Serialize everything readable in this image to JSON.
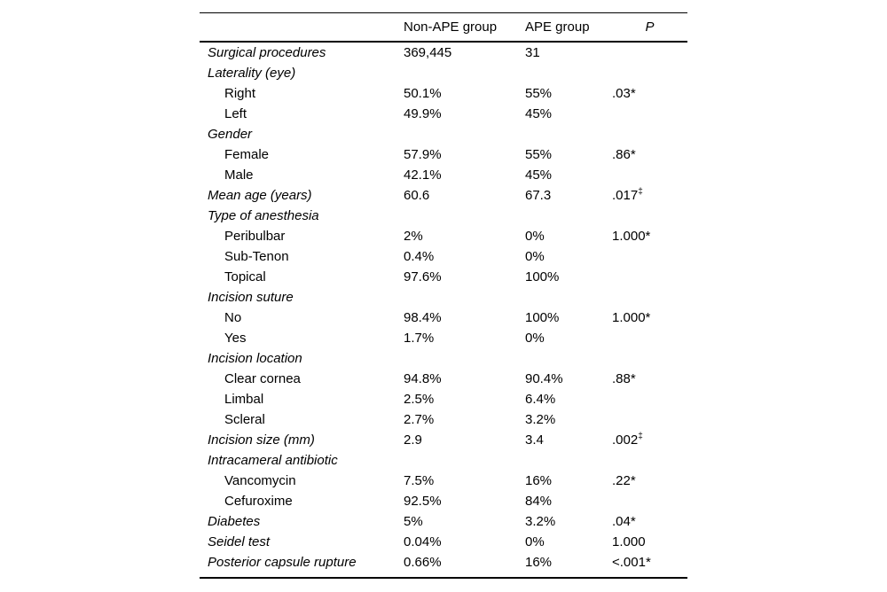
{
  "table": {
    "columns": {
      "label": "",
      "col1": "Non-APE group",
      "col2": "APE group",
      "p": "P"
    },
    "rows": [
      {
        "label": "Surgical procedures",
        "style": "category",
        "col1": "369,445",
        "col2": "31",
        "p": "",
        "p_sup": ""
      },
      {
        "label": "Laterality (eye)",
        "style": "category",
        "col1": "",
        "col2": "",
        "p": "",
        "p_sup": ""
      },
      {
        "label": "Right",
        "style": "sub",
        "col1": "50.1%",
        "col2": "55%",
        "p": ".03*",
        "p_sup": ""
      },
      {
        "label": "Left",
        "style": "sub",
        "col1": "49.9%",
        "col2": "45%",
        "p": "",
        "p_sup": ""
      },
      {
        "label": "Gender",
        "style": "category",
        "col1": "",
        "col2": "",
        "p": "",
        "p_sup": ""
      },
      {
        "label": "Female",
        "style": "sub",
        "col1": "57.9%",
        "col2": "55%",
        "p": ".86*",
        "p_sup": ""
      },
      {
        "label": "Male",
        "style": "sub",
        "col1": "42.1%",
        "col2": "45%",
        "p": "",
        "p_sup": ""
      },
      {
        "label": "Mean age (years)",
        "style": "category",
        "col1": "60.6",
        "col2": "67.3",
        "p": ".017",
        "p_sup": "‡"
      },
      {
        "label": "Type of anesthesia",
        "style": "category",
        "col1": "",
        "col2": "",
        "p": "",
        "p_sup": ""
      },
      {
        "label": "Peribulbar",
        "style": "sub",
        "col1": "2%",
        "col2": "0%",
        "p": "1.000*",
        "p_sup": ""
      },
      {
        "label": "Sub-Tenon",
        "style": "sub",
        "col1": "0.4%",
        "col2": "0%",
        "p": "",
        "p_sup": ""
      },
      {
        "label": "Topical",
        "style": "sub",
        "col1": "97.6%",
        "col2": "100%",
        "p": "",
        "p_sup": ""
      },
      {
        "label": "Incision suture",
        "style": "category",
        "col1": "",
        "col2": "",
        "p": "",
        "p_sup": ""
      },
      {
        "label": "No",
        "style": "sub",
        "col1": "98.4%",
        "col2": "100%",
        "p": "1.000*",
        "p_sup": ""
      },
      {
        "label": "Yes",
        "style": "sub",
        "col1": "1.7%",
        "col2": "0%",
        "p": "",
        "p_sup": ""
      },
      {
        "label": "Incision location",
        "style": "category",
        "col1": "",
        "col2": "",
        "p": "",
        "p_sup": ""
      },
      {
        "label": "Clear cornea",
        "style": "sub",
        "col1": "94.8%",
        "col2": "90.4%",
        "p": ".88*",
        "p_sup": ""
      },
      {
        "label": "Limbal",
        "style": "sub",
        "col1": "2.5%",
        "col2": "6.4%",
        "p": "",
        "p_sup": ""
      },
      {
        "label": "Scleral",
        "style": "sub",
        "col1": "2.7%",
        "col2": "3.2%",
        "p": "",
        "p_sup": ""
      },
      {
        "label": "Incision size (mm)",
        "style": "category",
        "col1": "2.9",
        "col2": "3.4",
        "p": ".002",
        "p_sup": "‡"
      },
      {
        "label": "Intracameral antibiotic",
        "style": "category",
        "col1": "",
        "col2": "",
        "p": "",
        "p_sup": ""
      },
      {
        "label": "Vancomycin",
        "style": "sub",
        "col1": "7.5%",
        "col2": "16%",
        "p": ".22*",
        "p_sup": ""
      },
      {
        "label": "Cefuroxime",
        "style": "sub",
        "col1": "92.5%",
        "col2": "84%",
        "p": "",
        "p_sup": ""
      },
      {
        "label": "Diabetes",
        "style": "category",
        "col1": "5%",
        "col2": "3.2%",
        "p": ".04*",
        "p_sup": ""
      },
      {
        "label": "Seidel test",
        "style": "category",
        "col1": "0.04%",
        "col2": "0%",
        "p": "1.000",
        "p_sup": ""
      },
      {
        "label": "Posterior capsule rupture",
        "style": "category",
        "col1": "0.66%",
        "col2": "16%",
        "p": "<.001*",
        "p_sup": ""
      }
    ]
  }
}
